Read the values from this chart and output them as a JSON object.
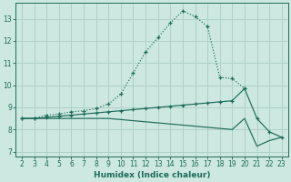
{
  "xlabel": "Humidex (Indice chaleur)",
  "bg_color": "#cce8e0",
  "grid_color": "#b0d0c8",
  "line_color": "#1e6b5a",
  "xlim": [
    1.5,
    23.5
  ],
  "ylim": [
    6.8,
    13.7
  ],
  "xticks": [
    2,
    3,
    4,
    5,
    6,
    7,
    8,
    9,
    10,
    11,
    12,
    13,
    14,
    15,
    16,
    17,
    18,
    19,
    20,
    21,
    22,
    23
  ],
  "yticks": [
    7,
    8,
    9,
    10,
    11,
    12,
    13
  ],
  "series1_x": [
    2,
    3,
    4,
    5,
    6,
    7,
    8,
    9,
    10,
    11,
    12,
    13,
    14,
    15,
    16,
    17,
    18,
    19,
    20
  ],
  "series1_y": [
    8.5,
    8.5,
    8.65,
    8.7,
    8.8,
    8.85,
    8.95,
    9.15,
    9.6,
    10.55,
    11.5,
    12.15,
    12.8,
    13.35,
    13.1,
    12.65,
    10.35,
    10.3,
    9.85
  ],
  "series2_x": [
    2,
    3,
    4,
    5,
    6,
    7,
    8,
    9,
    10,
    11,
    12,
    13,
    14,
    15,
    16,
    17,
    18,
    19,
    20,
    21,
    22,
    23
  ],
  "series2_y": [
    8.5,
    8.5,
    8.55,
    8.6,
    8.65,
    8.7,
    8.75,
    8.8,
    8.85,
    8.9,
    8.95,
    9.0,
    9.05,
    9.1,
    9.15,
    9.2,
    9.25,
    9.3,
    9.85,
    8.5,
    7.9,
    7.65
  ],
  "series3_x": [
    2,
    3,
    4,
    5,
    6,
    7,
    8,
    9,
    10,
    11,
    12,
    13,
    14,
    15,
    16,
    17,
    18,
    19,
    20,
    21,
    22,
    23
  ],
  "series3_y": [
    8.5,
    8.5,
    8.5,
    8.5,
    8.5,
    8.5,
    8.5,
    8.5,
    8.45,
    8.4,
    8.35,
    8.3,
    8.25,
    8.2,
    8.15,
    8.1,
    8.05,
    8.0,
    8.5,
    7.25,
    7.5,
    7.65
  ]
}
